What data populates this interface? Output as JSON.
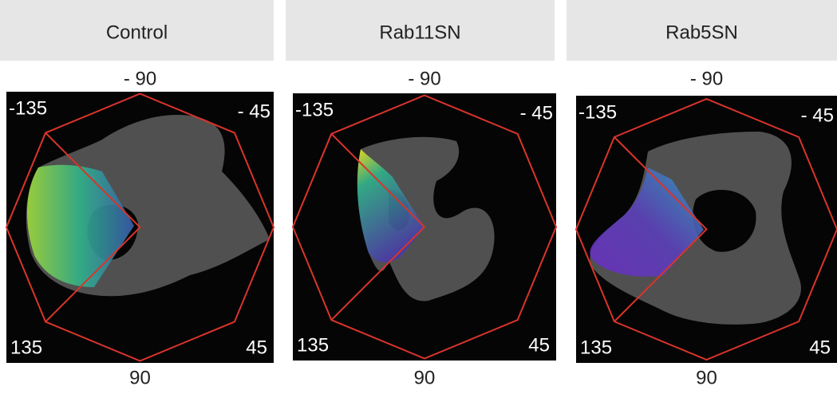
{
  "panels": [
    {
      "title": "Control",
      "angles": {
        "top": "- 90",
        "top_left": "-135",
        "top_right": "- 45",
        "bottom_left": "135",
        "bottom_right": "45",
        "bottom": "90"
      }
    },
    {
      "title": "Rab11SN",
      "angles": {
        "top": "- 90",
        "top_left": "-135",
        "top_right": "- 45",
        "bottom_left": "135",
        "bottom_right": "45",
        "bottom": "90"
      }
    },
    {
      "title": "Rab5SN",
      "angles": {
        "top": "- 90",
        "top_left": "-135",
        "top_right": "- 45",
        "bottom_left": "135",
        "bottom_right": "45",
        "bottom": "90"
      }
    }
  ]
}
